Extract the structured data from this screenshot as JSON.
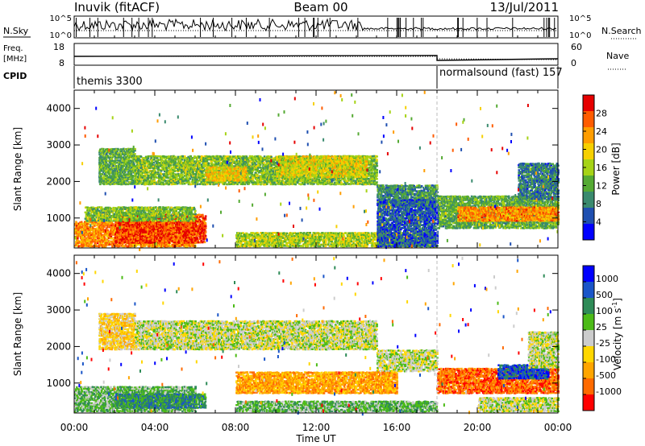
{
  "header": {
    "station": "Inuvik (fitACF)",
    "beam": "Beam 00",
    "date": "13/Jul/2011"
  },
  "noise_panel": {
    "left_label": "N.Sky",
    "left_ticks": [
      "10^5",
      "10^0"
    ],
    "right_label": "N.Search",
    "right_ticks": [
      "10^5",
      "10^0"
    ]
  },
  "freq_panel": {
    "left_label_1": "Freq.",
    "left_label_2": "[MHz]",
    "left_ticks": [
      "18",
      "8"
    ],
    "right_label": "Nave",
    "right_ticks": [
      "60",
      "0"
    ]
  },
  "cpid_panel": {
    "label": "CPID",
    "modes": [
      {
        "name": "themis 3300",
        "start_hour": 0
      },
      {
        "name": "normalsound (fast) 157",
        "start_hour": 18
      }
    ]
  },
  "colors": {
    "power_scale": [
      "#0000ff",
      "#1f4fb0",
      "#3a8a6e",
      "#55aa33",
      "#a6d316",
      "#f6d000",
      "#ff9d00",
      "#ff5c00",
      "#e60000"
    ],
    "velocity_scale": [
      "#0000ff",
      "#1a55c8",
      "#2e8b57",
      "#4cbb17",
      "#cccccc",
      "#ffd700",
      "#ffa500",
      "#ff6a00",
      "#ff0000"
    ]
  },
  "chart_data": [
    {
      "type": "heatmap",
      "panel": "power",
      "x_ticks": [
        "00:00",
        "04:00",
        "08:00",
        "12:00",
        "16:00",
        "20:00",
        "00:00"
      ],
      "xlim_hours": [
        0,
        24
      ],
      "ylabel": "Slant Range [km]",
      "y_ticks": [
        1000,
        2000,
        3000,
        4000
      ],
      "ylim": [
        180,
        4500
      ],
      "colorbar": {
        "label": "Power [dB]",
        "ticks": [
          4,
          8,
          12,
          16,
          20,
          24,
          28
        ],
        "range": [
          0,
          32
        ]
      },
      "echo_bands": [
        {
          "t0": 0.0,
          "t1": 6.0,
          "r0": 200,
          "r1": 900,
          "value": 24
        },
        {
          "t0": 2.0,
          "t1": 6.5,
          "r0": 300,
          "r1": 1100,
          "value": 28
        },
        {
          "t0": 0.5,
          "t1": 6.0,
          "r0": 900,
          "r1": 1300,
          "value": 14
        },
        {
          "t0": 1.2,
          "t1": 3.0,
          "r0": 1900,
          "r1": 2900,
          "value": 12
        },
        {
          "t0": 3.0,
          "t1": 15.0,
          "r0": 1900,
          "r1": 2700,
          "value": 14
        },
        {
          "t0": 6.5,
          "t1": 8.5,
          "r0": 2000,
          "r1": 2400,
          "value": 20
        },
        {
          "t0": 10.0,
          "t1": 14.5,
          "r0": 2100,
          "r1": 2700,
          "value": 18
        },
        {
          "t0": 15.0,
          "t1": 18.0,
          "r0": 1300,
          "r1": 1900,
          "value": 10
        },
        {
          "t0": 18.0,
          "t1": 24.0,
          "r0": 700,
          "r1": 1600,
          "value": 12
        },
        {
          "t0": 19.0,
          "t1": 24.0,
          "r0": 900,
          "r1": 1300,
          "value": 24
        },
        {
          "t0": 22.0,
          "t1": 24.0,
          "r0": 1500,
          "r1": 2500,
          "value": 8
        },
        {
          "t0": 8.0,
          "t1": 18.0,
          "r0": 200,
          "r1": 600,
          "value": 16
        },
        {
          "t0": 15.0,
          "t1": 18.0,
          "r0": 200,
          "r1": 1500,
          "value": 6
        }
      ]
    },
    {
      "type": "heatmap",
      "panel": "velocity",
      "x_ticks": [
        "00:00",
        "04:00",
        "08:00",
        "12:00",
        "16:00",
        "20:00",
        "00:00"
      ],
      "xlim_hours": [
        0,
        24
      ],
      "xlabel": "Time UT",
      "ylabel": "Slant Range [km]",
      "y_ticks": [
        1000,
        2000,
        3000,
        4000
      ],
      "ylim": [
        180,
        4500
      ],
      "colorbar": {
        "label": "Velocity [m s^-1]",
        "ticks": [
          "1000",
          "500",
          "100",
          "25",
          "-25",
          "-100",
          "-500",
          "-1000"
        ]
      },
      "echo_bands": [
        {
          "t0": 0.0,
          "t1": 6.0,
          "r0": 200,
          "r1": 900,
          "value": 3
        },
        {
          "t0": 2.0,
          "t1": 6.5,
          "r0": 300,
          "r1": 700,
          "value": 2
        },
        {
          "t0": 1.2,
          "t1": 3.0,
          "r0": 1900,
          "r1": 2900,
          "value": 5
        },
        {
          "t0": 3.0,
          "t1": 15.0,
          "r0": 1900,
          "r1": 2700,
          "value": 4
        },
        {
          "t0": 15.0,
          "t1": 18.0,
          "r0": 1300,
          "r1": 1900,
          "value": 4
        },
        {
          "t0": 8.0,
          "t1": 16.0,
          "r0": 700,
          "r1": 1300,
          "value": 6
        },
        {
          "t0": 18.0,
          "t1": 24.0,
          "r0": 700,
          "r1": 1400,
          "value": 7
        },
        {
          "t0": 21.0,
          "t1": 23.5,
          "r0": 1100,
          "r1": 1500,
          "value": 1
        },
        {
          "t0": 22.5,
          "t1": 24.0,
          "r0": 1400,
          "r1": 2400,
          "value": 4
        },
        {
          "t0": 8.0,
          "t1": 18.0,
          "r0": 200,
          "r1": 500,
          "value": 3
        },
        {
          "t0": 20.0,
          "t1": 24.0,
          "r0": 200,
          "r1": 600,
          "value": 4
        }
      ]
    }
  ]
}
